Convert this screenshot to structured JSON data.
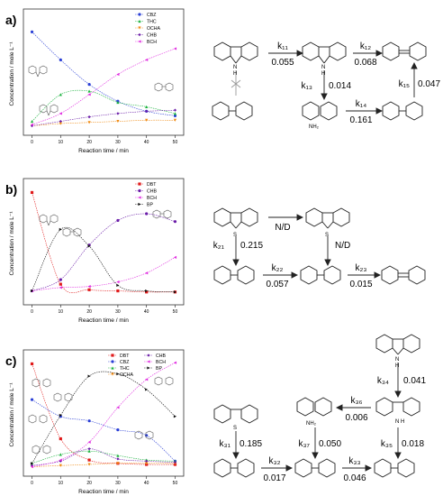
{
  "panels": [
    {
      "label": "a)",
      "ylabel": "Concentration / mole L⁻¹",
      "xlabel": "Reaction time / min",
      "xticks": [
        "0",
        "10",
        "20",
        "30",
        "40",
        "50"
      ],
      "legend": [
        {
          "name": "CBZ",
          "color": "#2a3fd6",
          "marker": "circle"
        },
        {
          "name": "THC",
          "color": "#19b23c",
          "marker": "triangle"
        },
        {
          "name": "OCHA",
          "color": "#f08b14",
          "marker": "triangle-down"
        },
        {
          "name": "CHB",
          "color": "#6a1ca8",
          "marker": "diamond"
        },
        {
          "name": "BCH",
          "color": "#e02ae0",
          "marker": "triangle-left"
        }
      ],
      "rates": [
        {
          "k": "k₁₁",
          "v": "0.055"
        },
        {
          "k": "k₁₂",
          "v": "0.068"
        },
        {
          "k": "k₁₃",
          "v": "0.014"
        },
        {
          "k": "k₁₄",
          "v": "0.161"
        },
        {
          "k": "k₁₅",
          "v": "0.047"
        }
      ],
      "mol_labels": [
        {
          "text": "N"
        },
        {
          "text": "H"
        },
        {
          "text": "N"
        },
        {
          "text": "H"
        },
        {
          "text": "NH₂"
        }
      ]
    },
    {
      "label": "b)",
      "ylabel": "Concentration / mole L⁻¹",
      "xlabel": "Reaction time / min",
      "xticks": [
        "0",
        "10",
        "20",
        "30",
        "40",
        "50"
      ],
      "legend": [
        {
          "name": "DBT",
          "color": "#e01a1a",
          "marker": "square"
        },
        {
          "name": "CHB",
          "color": "#6a1ca8",
          "marker": "circle"
        },
        {
          "name": "BCH",
          "color": "#e02ae0",
          "marker": "triangle-left"
        },
        {
          "name": "BP",
          "color": "#111111",
          "marker": "triangle-right"
        }
      ],
      "rates": [
        {
          "k": "N/D",
          "v": ""
        },
        {
          "k": "k₂₁",
          "v": "0.215"
        },
        {
          "k": "N/D",
          "v": ""
        },
        {
          "k": "k₂₂",
          "v": "0.057"
        },
        {
          "k": "k₂₃",
          "v": "0.015"
        }
      ],
      "mol_labels": [
        {
          "text": "S"
        },
        {
          "text": "S"
        }
      ]
    },
    {
      "label": "c)",
      "ylabel": "Concentration / mole L⁻¹",
      "xlabel": "Reaction time / min",
      "xticks": [
        "0",
        "10",
        "20",
        "30",
        "40",
        "50"
      ],
      "legend": [
        {
          "name": "DBT",
          "color": "#e01a1a",
          "marker": "square"
        },
        {
          "name": "CBZ",
          "color": "#2a3fd6",
          "marker": "circle"
        },
        {
          "name": "THC",
          "color": "#19b23c",
          "marker": "triangle"
        },
        {
          "name": "OCHA",
          "color": "#f08b14",
          "marker": "triangle-down"
        },
        {
          "name": "CHB",
          "color": "#6a1ca8",
          "marker": "diamond"
        },
        {
          "name": "BCH",
          "color": "#e02ae0",
          "marker": "triangle-left"
        },
        {
          "name": "BP",
          "color": "#111111",
          "marker": "triangle-right"
        }
      ],
      "rates": [
        {
          "k": "k₃₄",
          "v": "0.041"
        },
        {
          "k": "k₃₆",
          "v": "0.006"
        },
        {
          "k": "k₃₁",
          "v": "0.185"
        },
        {
          "k": "k₃₇",
          "v": "0.050"
        },
        {
          "k": "k₃₅",
          "v": "0.018"
        },
        {
          "k": "k₃₂",
          "v": "0.017"
        },
        {
          "k": "k₃₃",
          "v": "0.046"
        }
      ],
      "mol_labels": [
        {
          "text": "N"
        },
        {
          "text": "H"
        },
        {
          "text": "NH₂"
        },
        {
          "text": "N"
        },
        {
          "text": "H"
        },
        {
          "text": "S"
        }
      ]
    }
  ],
  "chart_data": [
    {
      "type": "line",
      "x": [
        0,
        10,
        20,
        30,
        40,
        50
      ],
      "ylim": [
        0,
        1
      ],
      "xlim": [
        -3,
        53
      ],
      "series": [
        {
          "name": "CBZ",
          "values": [
            0.86,
            0.61,
            0.39,
            0.24,
            0.15,
            0.11
          ]
        },
        {
          "name": "THC",
          "values": [
            0.06,
            0.3,
            0.33,
            0.23,
            0.19,
            0.13
          ]
        },
        {
          "name": "OCHA",
          "values": [
            0.02,
            0.04,
            0.05,
            0.06,
            0.07,
            0.07
          ]
        },
        {
          "name": "CHB",
          "values": [
            0.02,
            0.06,
            0.1,
            0.13,
            0.15,
            0.16
          ]
        },
        {
          "name": "BCH",
          "values": [
            0.03,
            0.13,
            0.3,
            0.48,
            0.61,
            0.71
          ]
        }
      ]
    },
    {
      "type": "line",
      "x": [
        0,
        10,
        20,
        30,
        40,
        50
      ],
      "ylim": [
        0,
        1
      ],
      "xlim": [
        -3,
        53
      ],
      "series": [
        {
          "name": "DBT",
          "values": [
            0.94,
            0.12,
            0.07,
            0.06,
            0.05,
            0.05
          ]
        },
        {
          "name": "CHB",
          "values": [
            0.06,
            0.16,
            0.47,
            0.69,
            0.75,
            0.68
          ]
        },
        {
          "name": "BCH",
          "values": [
            0.06,
            0.09,
            0.1,
            0.14,
            0.22,
            0.36
          ]
        },
        {
          "name": "BP",
          "values": [
            0.06,
            0.61,
            0.46,
            0.11,
            0.06,
            0.05
          ]
        }
      ]
    },
    {
      "type": "line",
      "x": [
        0,
        10,
        20,
        30,
        40,
        50
      ],
      "ylim": [
        0,
        1
      ],
      "xlim": [
        -3,
        53
      ],
      "series": [
        {
          "name": "DBT",
          "values": [
            0.94,
            0.27,
            0.08,
            0.05,
            0.04,
            0.04
          ]
        },
        {
          "name": "CBZ",
          "values": [
            0.62,
            0.47,
            0.43,
            0.35,
            0.3,
            0.07
          ]
        },
        {
          "name": "THC",
          "values": [
            0.05,
            0.13,
            0.16,
            0.12,
            0.08,
            0.07
          ]
        },
        {
          "name": "OCHA",
          "values": [
            0.02,
            0.03,
            0.04,
            0.05,
            0.05,
            0.05
          ]
        },
        {
          "name": "CHB",
          "values": [
            0.03,
            0.07,
            0.18,
            0.09,
            0.07,
            0.06
          ]
        },
        {
          "name": "BCH",
          "values": [
            0.02,
            0.08,
            0.24,
            0.55,
            0.8,
            0.95
          ]
        },
        {
          "name": "BP",
          "values": [
            0.05,
            0.48,
            0.83,
            0.85,
            0.71,
            0.47
          ]
        }
      ]
    }
  ]
}
